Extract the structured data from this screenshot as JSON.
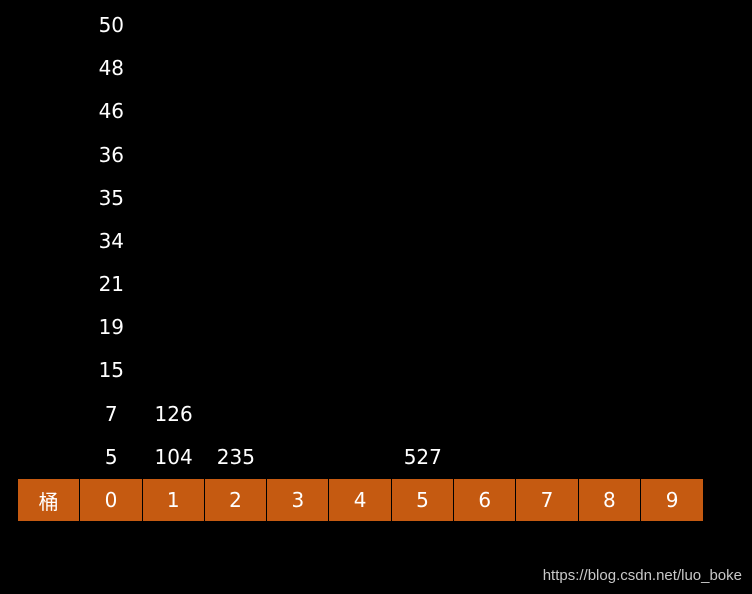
{
  "header_label": "桶",
  "buckets": [
    {
      "label": "0",
      "items": [
        "50",
        "48",
        "46",
        "36",
        "35",
        "34",
        "21",
        "19",
        "15",
        "7",
        "5"
      ]
    },
    {
      "label": "1",
      "items": [
        "126",
        "104"
      ]
    },
    {
      "label": "2",
      "items": [
        "235"
      ]
    },
    {
      "label": "3",
      "items": []
    },
    {
      "label": "4",
      "items": []
    },
    {
      "label": "5",
      "items": [
        "527"
      ]
    },
    {
      "label": "6",
      "items": []
    },
    {
      "label": "7",
      "items": []
    },
    {
      "label": "8",
      "items": []
    },
    {
      "label": "9",
      "items": []
    }
  ],
  "colors": {
    "bucket_fill": "#c55a11",
    "background": "#000000",
    "text": "#ffffff"
  },
  "watermark": "https://blog.csdn.net/luo_boke"
}
